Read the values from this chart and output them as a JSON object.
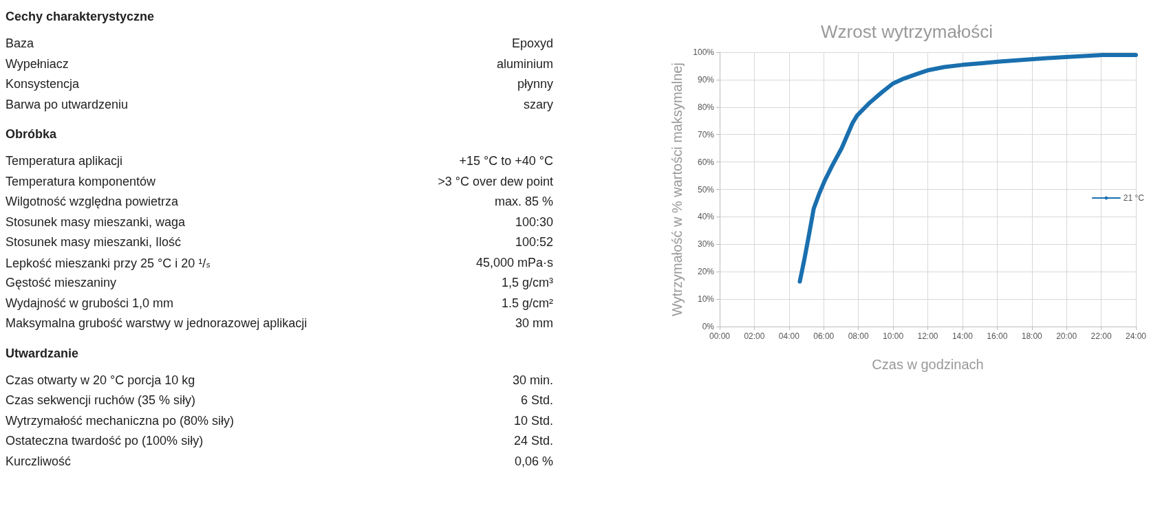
{
  "chart_data": [
    {
      "type": "other",
      "title": "Cechy charakterystyczne",
      "categories": [
        "Baza",
        "Wypełniacz",
        "Konsystencja",
        "Barwa po utwardzeniu"
      ],
      "value_labels": [
        "Epoxyd",
        "aluminium",
        "płynny",
        "szary"
      ]
    },
    {
      "type": "other",
      "title": "Obróbka",
      "categories": [
        "Temperatura aplikacji",
        "Temperatura komponentów",
        "Wilgotność względna powietrza",
        "Stosunek masy mieszanki, waga",
        "Stosunek masy mieszanki, Ilość",
        "Lepkość mieszanki przy 25 °C i 20 ¹/ₛ",
        "Gęstość mieszaniny",
        "Wydajność w grubości 1,0 mm",
        "Maksymalna grubość warstwy w jednorazowej aplikacji"
      ],
      "value_labels": [
        "+15 °C to +40 °C",
        ">3 °C over dew point",
        "max. 85 %",
        "100:30",
        "100:52",
        "45,000 mPa·s",
        "1,5 g/cm³",
        "1.5 g/cm²",
        "30 mm"
      ]
    },
    {
      "type": "other",
      "title": "Utwardzanie",
      "categories": [
        "Czas otwarty w 20 °C porcja 10 kg",
        "Czas sekwencji ruchów  (35 % siły)",
        "Wytrzymałość mechaniczna po (80% siły)",
        "Ostateczna twardość po (100% siły)",
        "Kurczliwość"
      ],
      "value_labels": [
        "30 min.",
        "6 Std.",
        "10 Std.",
        "24 Std.",
        "0,06 %"
      ]
    },
    {
      "type": "line",
      "title": "Wzrost wytrzymałości",
      "xlabel": "Czas w godzinach",
      "ylabel": "Wytrzymałość w % wartości maksymalnej",
      "legend": "right",
      "grid": true,
      "marker": "none",
      "line_style": "solid",
      "xlim": [
        0,
        24
      ],
      "xticks": [
        {
          "value": 0,
          "label": "00:00"
        },
        {
          "value": 2,
          "label": "02:00"
        },
        {
          "value": 4,
          "label": "04:00"
        },
        {
          "value": 6,
          "label": "06:00"
        },
        {
          "value": 8,
          "label": "08:00"
        },
        {
          "value": 10,
          "label": "10:00"
        },
        {
          "value": 12,
          "label": "12:00"
        },
        {
          "value": 14,
          "label": "14:00"
        },
        {
          "value": 16,
          "label": "16:00"
        },
        {
          "value": 18,
          "label": "18:00"
        },
        {
          "value": 20,
          "label": "20:00"
        },
        {
          "value": 22,
          "label": "22:00"
        },
        {
          "value": 24,
          "label": "24:00"
        }
      ],
      "ylim": [
        0,
        100
      ],
      "yticks": [
        {
          "value": 0,
          "label": "0%"
        },
        {
          "value": 10,
          "label": "10%"
        },
        {
          "value": 20,
          "label": "20%"
        },
        {
          "value": 30,
          "label": "30%"
        },
        {
          "value": 40,
          "label": "40%"
        },
        {
          "value": 50,
          "label": "50%"
        },
        {
          "value": 60,
          "label": "60%"
        },
        {
          "value": 70,
          "label": "70%"
        },
        {
          "value": 80,
          "label": "80%"
        },
        {
          "value": 90,
          "label": "90%"
        },
        {
          "value": 100,
          "label": "100%"
        }
      ],
      "x": [
        4.62,
        4.89,
        5.16,
        5.42,
        5.75,
        6.05,
        6.5,
        7.04,
        7.66,
        7.93,
        8.65,
        9.37,
        9.99,
        10.62,
        11.34,
        12.05,
        12.95,
        14.0,
        15.1,
        16.17,
        17.25,
        18.5,
        19.76,
        21.0,
        22.08,
        24
      ],
      "series": [
        {
          "name": "21 °C",
          "color": "#1a6fae",
          "values": [
            16.4,
            24.7,
            33.8,
            42.9,
            48.6,
            53.1,
            58.8,
            65.1,
            74.2,
            77,
            81.6,
            85.5,
            88.6,
            90.4,
            92,
            93.5,
            94.6,
            95.4,
            96,
            96.6,
            97.1,
            97.7,
            98.2,
            98.6,
            99,
            99
          ]
        }
      ]
    }
  ]
}
